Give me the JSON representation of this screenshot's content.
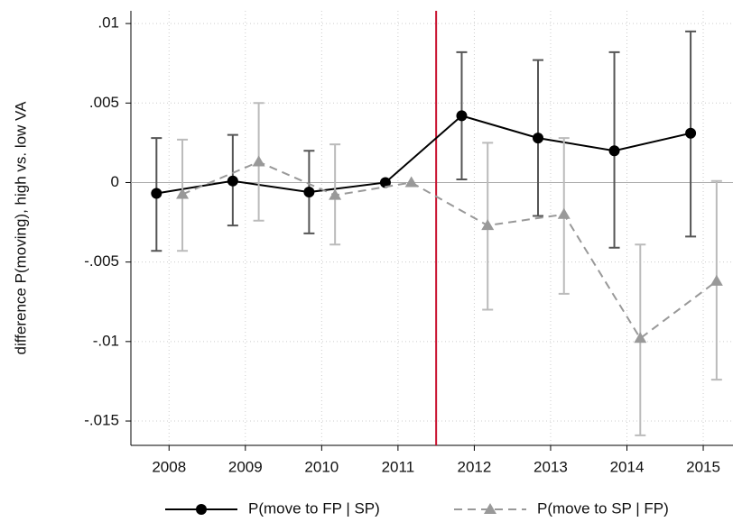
{
  "chart_data": {
    "type": "errorbar-line",
    "y_label": "difference P(moving), high vs. low VA",
    "xlim": [
      2007.5,
      2015.39
    ],
    "xticks": [
      2008,
      2009,
      2010,
      2011,
      2012,
      2013,
      2014,
      2015
    ],
    "ylim": [
      -0.01653,
      0.0108
    ],
    "yticks": [
      {
        "value": -0.015,
        "label": "-.015"
      },
      {
        "value": -0.01,
        "label": "-.01"
      },
      {
        "value": -0.005,
        "label": "-.005"
      },
      {
        "value": 0,
        "label": "0"
      },
      {
        "value": 0.005,
        "label": ".005"
      },
      {
        "value": 0.01,
        "label": ".01"
      }
    ],
    "grid": true,
    "vline": 2011.5,
    "vline_color": "#c8102e",
    "hline": 0,
    "legend": "bottom",
    "series": [
      {
        "name": "P(move to FP | SP)",
        "color": "#000000",
        "marker": "circle",
        "dash": false,
        "x": [
          2007.835,
          2008.835,
          2009.835,
          2010.835,
          2011.835,
          2012.835,
          2013.835,
          2014.835
        ],
        "values": [
          -0.00068,
          0.0001,
          -0.0006,
          0,
          0.0042,
          0.0028,
          0.002,
          0.0031
        ],
        "lower": [
          -0.0043,
          -0.0027,
          -0.0032,
          null,
          0.0002,
          -0.0021,
          -0.0041,
          -0.0034
        ],
        "upper": [
          0.0028,
          0.003,
          0.002,
          null,
          0.0082,
          0.0077,
          0.0082,
          0.0095
        ],
        "ci_color": "#555555"
      },
      {
        "name": "P(move to SP | FP)",
        "color": "#999999",
        "marker": "triangle",
        "dash": true,
        "x": [
          2008.175,
          2009.175,
          2010.175,
          2011.175,
          2012.175,
          2013.175,
          2014.175,
          2015.175
        ],
        "values": [
          -0.00074,
          0.0013,
          -0.0008,
          0,
          -0.0027,
          -0.002,
          -0.0098,
          -0.0062
        ],
        "lower": [
          -0.0043,
          -0.0024,
          -0.0039,
          null,
          -0.008,
          -0.007,
          -0.0159,
          -0.0124
        ],
        "upper": [
          0.0027,
          0.005,
          0.0024,
          null,
          0.0025,
          0.0028,
          -0.0039,
          0.0001
        ],
        "ci_color": "#bbbbbb"
      }
    ]
  }
}
